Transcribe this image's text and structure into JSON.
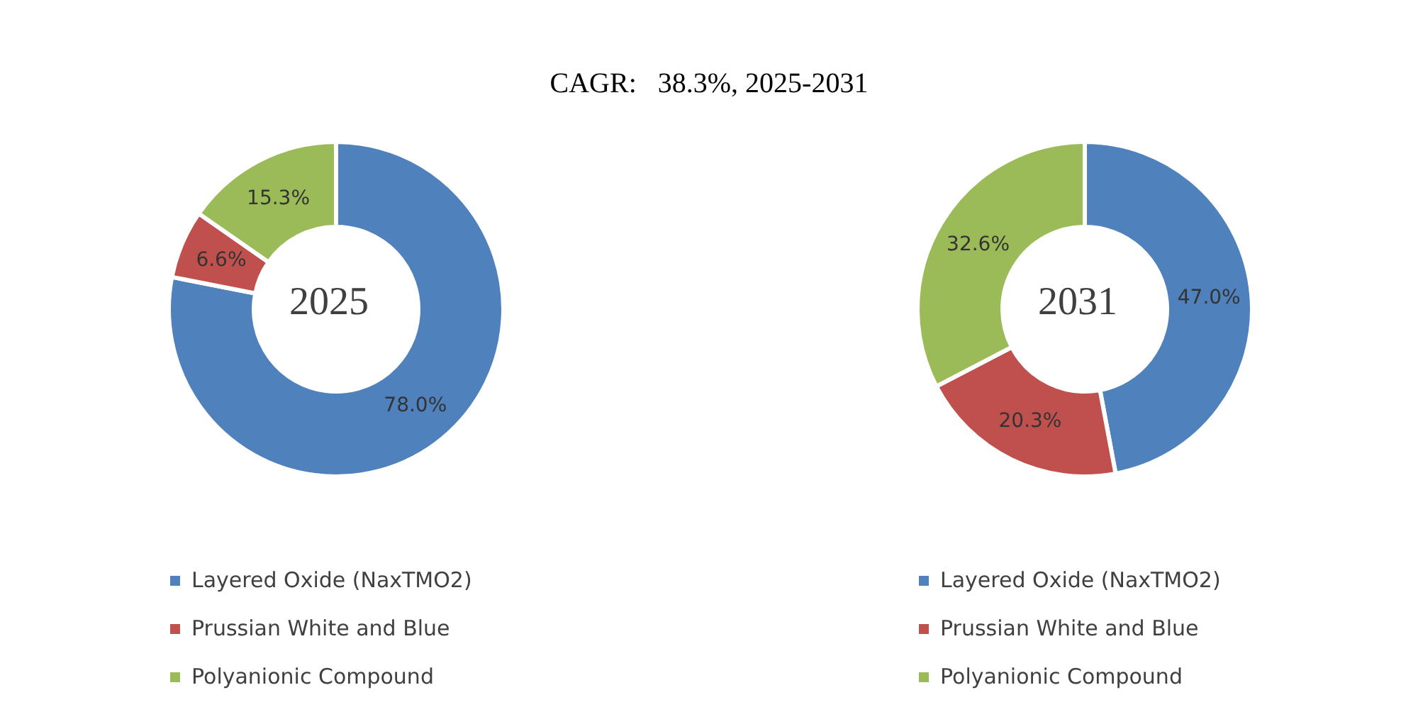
{
  "chart_data": [
    {
      "type": "donut",
      "title": "CAGR:   38.3%, 2025-2031",
      "subtitle": "2025",
      "categories": [
        "Layered Oxide (NaxTMO2)",
        "Prussian White and Blue",
        "Polyanionic Compound"
      ],
      "values": [
        78.0,
        6.6,
        15.3
      ],
      "value_labels": [
        "78.0%",
        "6.6%",
        "15.3%"
      ],
      "colors": [
        "#4f81bd",
        "#c0504d",
        "#9bbb59"
      ],
      "legend": "bottom"
    },
    {
      "type": "donut",
      "subtitle": "2031",
      "categories": [
        "Layered Oxide (NaxTMO2)",
        "Prussian White and Blue",
        "Polyanionic Compound"
      ],
      "values": [
        47.0,
        20.3,
        32.6
      ],
      "value_labels": [
        "47.0%",
        "20.3%",
        "32.6%"
      ],
      "colors": [
        "#4f81bd",
        "#c0504d",
        "#9bbb59"
      ],
      "legend": "bottom"
    }
  ]
}
